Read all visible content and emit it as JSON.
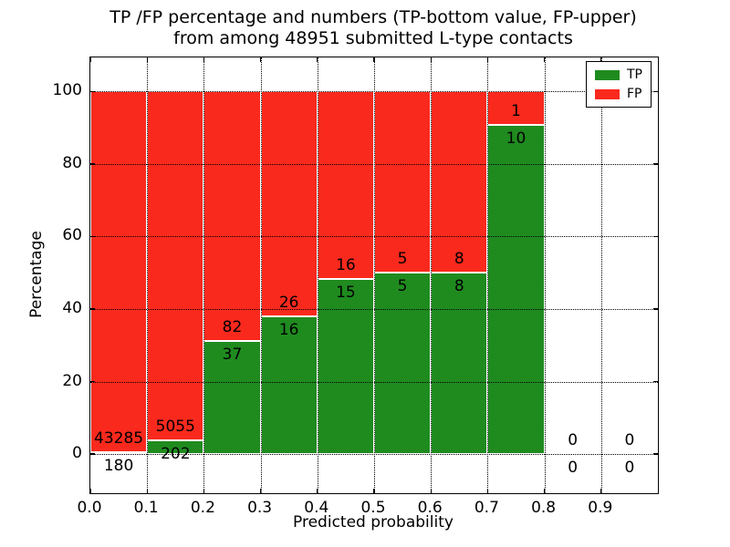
{
  "title": {
    "line1": "TP /FP percentage and numbers (TP-bottom value, FP-upper)",
    "line2": "from among 48951 submitted L-type contacts"
  },
  "axes": {
    "xlabel": "Predicted probability",
    "ylabel": "Percentage",
    "xtick_labels": [
      "0.0",
      "0.1",
      "0.2",
      "0.3",
      "0.4",
      "0.5",
      "0.6",
      "0.7",
      "0.8",
      "0.9"
    ],
    "ytick_labels": [
      "0",
      "20",
      "40",
      "60",
      "80",
      "100"
    ]
  },
  "legend": {
    "items": [
      {
        "label": "TP",
        "color": "#1f8b1f"
      },
      {
        "label": "FP",
        "color": "#f9291d"
      }
    ]
  },
  "chart_data": {
    "type": "bar",
    "stacked": true,
    "normalization": "each bin scaled to 100%; labels show raw counts (TP bottom value, FP upper)",
    "title": "TP /FP percentage and numbers (TP-bottom value, FP-upper) from among 48951 submitted L-type contacts",
    "xlabel": "Predicted probability",
    "ylabel": "Percentage",
    "total_contacts": 48951,
    "bin_edges": [
      0.0,
      0.1,
      0.2,
      0.3,
      0.4,
      0.5,
      0.6,
      0.7,
      0.8,
      0.9,
      1.0
    ],
    "series": [
      {
        "name": "TP",
        "color": "#1f8b1f",
        "counts": [
          180,
          202,
          37,
          16,
          15,
          5,
          8,
          10,
          0,
          0
        ]
      },
      {
        "name": "FP",
        "color": "#f9291d",
        "counts": [
          43285,
          5055,
          82,
          26,
          16,
          5,
          8,
          1,
          0,
          0
        ]
      }
    ],
    "xticks": [
      0.0,
      0.1,
      0.2,
      0.3,
      0.4,
      0.5,
      0.6,
      0.7,
      0.8,
      0.9
    ],
    "yticks": [
      0,
      20,
      40,
      60,
      80,
      100
    ],
    "xlim": [
      0,
      1
    ],
    "ylim": [
      -10.8,
      109.4
    ],
    "grid": true,
    "grid_style": "dotted",
    "legend_position": "upper right",
    "bar_edge_color": "#ffffff"
  }
}
